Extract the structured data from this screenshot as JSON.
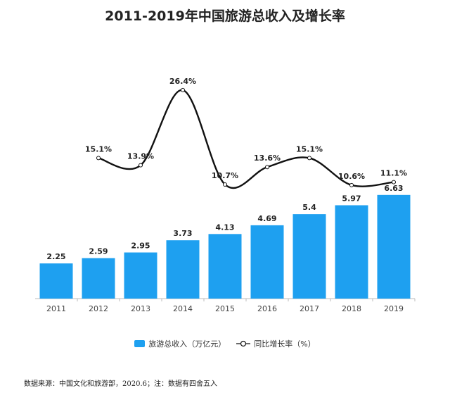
{
  "chart_data": {
    "type": "bar+line",
    "title": "2011-2019年中国旅游总收入及增长率",
    "categories": [
      "2011",
      "2012",
      "2013",
      "2014",
      "2015",
      "2016",
      "2017",
      "2018",
      "2019"
    ],
    "series": [
      {
        "name": "旅游总收入（万亿元）",
        "type": "bar",
        "color": "#1ea0f0",
        "values": [
          2.25,
          2.59,
          2.95,
          3.73,
          4.13,
          4.69,
          5.4,
          5.97,
          6.63
        ],
        "labels": [
          "2.25",
          "2.59",
          "2.95",
          "3.73",
          "4.13",
          "4.69",
          "5.4",
          "5.97",
          "6.63"
        ]
      },
      {
        "name": "同比增长率（%）",
        "type": "line",
        "color": "#111111",
        "smooth": true,
        "values": [
          null,
          15.1,
          13.9,
          26.4,
          10.7,
          13.6,
          15.1,
          10.6,
          11.1
        ],
        "labels": [
          "",
          "15.1%",
          "13.9%",
          "26.4%",
          "10.7%",
          "13.6%",
          "15.1%",
          "10.6%",
          "11.1%"
        ]
      }
    ],
    "grid": false,
    "legend_position": "bottom"
  },
  "legend": {
    "bar": "旅游总收入（万亿元）",
    "line": "同比增长率（%）"
  },
  "source": "数据来源：中国文化和旅游部，2020.6；注：数据有四舍五入"
}
